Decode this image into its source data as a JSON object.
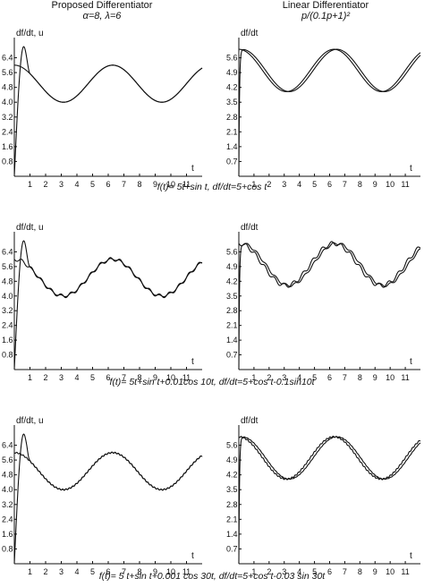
{
  "headers": {
    "left_title": "Proposed Differentiator",
    "left_params": "α=8, λ=6",
    "right_title": "Linear Differentiator",
    "right_params": "p/(0.1p+1)²"
  },
  "captions": [
    "f(t)= 5t+sin t,  df/dt=5+cos t",
    "f(t)= 5t+sin t+0.01cos 10t,  df/dt=5+cos t-0.1sin10t",
    "f(t)= 5 t+sin t+0.001 cos 30t,  df/dt=5+cos t-0.03 sin 30t"
  ],
  "chart_data": [
    {
      "type": "line",
      "panel": "row1-left",
      "ylabel": "df/dt, u",
      "xlabel": "t",
      "x_ticks": [
        "1",
        "2",
        "3",
        "4",
        "5",
        "6",
        "7",
        "8",
        "9",
        "10",
        "11"
      ],
      "y_ticks": [
        "6.4",
        "5.6",
        "4.8",
        "4.0",
        "3.2",
        "2.4",
        "1.6",
        "0.8"
      ],
      "xlim": [
        0,
        12
      ],
      "ylim": [
        0,
        7.2
      ],
      "series": [
        {
          "function": "5+cos t"
        },
        {
          "function": "proposed differentiator output u"
        }
      ]
    },
    {
      "type": "line",
      "panel": "row1-right",
      "ylabel": "df/dt",
      "xlabel": "t",
      "x_ticks": [
        "1",
        "2",
        "3",
        "4",
        "5",
        "6",
        "7",
        "8",
        "9",
        "10",
        "11"
      ],
      "y_ticks": [
        "5.6",
        "4.9",
        "4.2",
        "3.5",
        "2.8",
        "2.1",
        "1.4",
        "0.7"
      ],
      "xlim": [
        0,
        12
      ],
      "ylim": [
        0,
        6.3
      ],
      "series": [
        {
          "function": "5+cos t"
        },
        {
          "function": "linear differentiator output"
        }
      ]
    },
    {
      "type": "line",
      "panel": "row2-left",
      "ylabel": "df/dt, u",
      "xlabel": "t",
      "x_ticks": [
        "1",
        "2",
        "3",
        "4",
        "5",
        "6",
        "7",
        "8",
        "9",
        "10",
        "11"
      ],
      "y_ticks": [
        "6.4",
        "5.6",
        "4.8",
        "4.0",
        "3.2",
        "2.4",
        "1.6",
        "0.8"
      ],
      "xlim": [
        0,
        12
      ],
      "ylim": [
        0,
        7.2
      ],
      "series": [
        {
          "function": "5+cos t-0.1sin10t"
        },
        {
          "function": "proposed differentiator output u"
        }
      ]
    },
    {
      "type": "line",
      "panel": "row2-right",
      "ylabel": "df/dt",
      "xlabel": "t",
      "x_ticks": [
        "1",
        "2",
        "3",
        "4",
        "5",
        "6",
        "7",
        "8",
        "9",
        "10",
        "11"
      ],
      "y_ticks": [
        "5.6",
        "4.9",
        "4.2",
        "3.5",
        "2.8",
        "2.1",
        "1.4",
        "0.7"
      ],
      "xlim": [
        0,
        12
      ],
      "ylim": [
        0,
        6.3
      ],
      "series": [
        {
          "function": "5+cos t-0.1sin10t"
        },
        {
          "function": "linear differentiator output"
        }
      ]
    },
    {
      "type": "line",
      "panel": "row3-left",
      "ylabel": "df/dt, u",
      "xlabel": "t",
      "x_ticks": [
        "1",
        "2",
        "3",
        "4",
        "5",
        "6",
        "7",
        "8",
        "9",
        "10",
        "11"
      ],
      "y_ticks": [
        "6.4",
        "5.6",
        "4.8",
        "4.0",
        "3.2",
        "2.4",
        "1.6",
        "0.8"
      ],
      "xlim": [
        0,
        12
      ],
      "ylim": [
        0,
        7.2
      ],
      "series": [
        {
          "function": "5+cos t-0.03 sin 30t"
        },
        {
          "function": "proposed differentiator output u"
        }
      ]
    },
    {
      "type": "line",
      "panel": "row3-right",
      "ylabel": "df/dt",
      "xlabel": "t",
      "x_ticks": [
        "1",
        "2",
        "3",
        "4",
        "5",
        "6",
        "7",
        "8",
        "9",
        "10",
        "11"
      ],
      "y_ticks": [
        "5.6",
        "4.9",
        "4.2",
        "3.5",
        "2.8",
        "2.1",
        "1.4",
        "0.7"
      ],
      "xlim": [
        0,
        12
      ],
      "ylim": [
        0,
        6.3
      ],
      "series": [
        {
          "function": "5+cos t-0.03 sin 30t"
        },
        {
          "function": "linear differentiator output"
        }
      ]
    }
  ]
}
